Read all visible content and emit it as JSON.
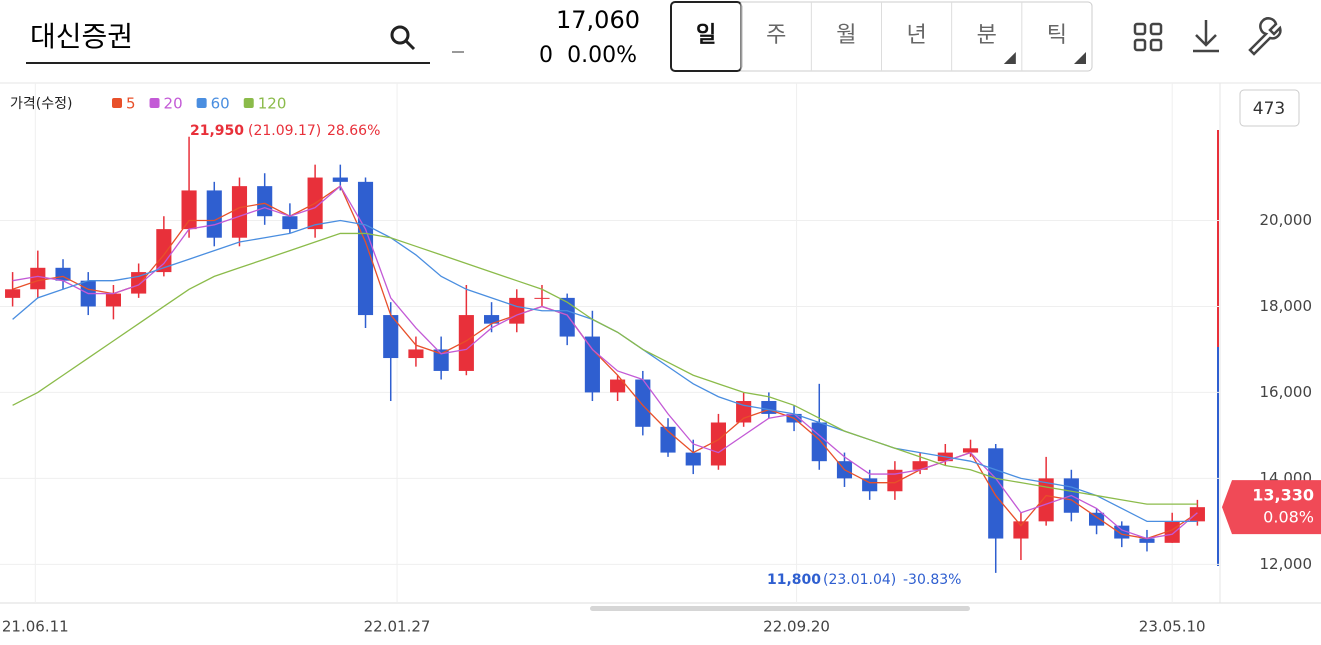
{
  "header": {
    "search": "대신증권",
    "price": "17,060",
    "change": "0",
    "change_pct": "0.00%",
    "tabs": [
      "일",
      "주",
      "월",
      "년",
      "분",
      "틱"
    ],
    "badge": "473"
  },
  "chart_data": {
    "type": "candlestick",
    "legend_title": "가격(수정)",
    "annotations": {
      "max_value": "21,950",
      "max_date": "(21.09.17)",
      "max_change": "28.66%",
      "min_value": "11,800",
      "min_date": "(23.01.04)",
      "min_change": "-30.83%"
    },
    "last_price": {
      "value": 13330,
      "label": "13,330",
      "change": "0.08%"
    },
    "xlim": [
      0,
      48
    ],
    "xticks": [
      {
        "value": 1.4,
        "label": "21.06.11"
      },
      {
        "value": 15.75,
        "label": "22.01.27"
      },
      {
        "value": 31.6,
        "label": "22.09.20"
      },
      {
        "value": 46.5,
        "label": "23.05.10"
      }
    ],
    "ylim": [
      11100,
      23200
    ],
    "yticks": [
      {
        "value": 12000,
        "label": "12,000"
      },
      {
        "value": 14000,
        "label": "14,000"
      },
      {
        "value": 16000,
        "label": "16,000"
      },
      {
        "value": 18000,
        "label": "18,000"
      },
      {
        "value": 20000,
        "label": "20,000"
      }
    ],
    "up_color": "#e8303a",
    "down_color": "#2f5fd0",
    "open": [
      18200,
      18400,
      18900,
      18600,
      18000,
      18300,
      18800,
      19800,
      20700,
      19600,
      20800,
      20100,
      19800,
      21000,
      20900,
      17800,
      16800,
      17000,
      16500,
      17800,
      17600,
      18200,
      18200,
      17300,
      16000,
      16300,
      15200,
      14600,
      14300,
      15300,
      15800,
      15500,
      15300,
      14400,
      14000,
      13700,
      14200,
      14400,
      14600,
      14700,
      12600,
      13000,
      14000,
      13200,
      12900,
      12600,
      12500,
      13000
    ],
    "high": [
      18800,
      19300,
      19100,
      18800,
      18500,
      19000,
      20100,
      21950,
      20900,
      21000,
      21100,
      20400,
      21300,
      21300,
      21000,
      18100,
      17300,
      17300,
      18500,
      18100,
      18400,
      18500,
      18300,
      17900,
      16400,
      16500,
      15400,
      14900,
      15500,
      16000,
      16000,
      15700,
      16200,
      14600,
      14200,
      14400,
      14600,
      14800,
      14900,
      14800,
      13200,
      14500,
      14200,
      13300,
      13000,
      12800,
      13200,
      13500
    ],
    "low": [
      18000,
      18200,
      18400,
      17800,
      17700,
      18200,
      18700,
      19600,
      19400,
      19400,
      19900,
      19700,
      19600,
      20700,
      17500,
      15800,
      16600,
      16300,
      16400,
      17400,
      17400,
      18000,
      17100,
      15800,
      15800,
      15000,
      14500,
      14100,
      14200,
      15200,
      15400,
      15100,
      14200,
      13800,
      13500,
      13500,
      14100,
      14300,
      14500,
      11800,
      12100,
      12900,
      13000,
      12700,
      12400,
      12300,
      12500,
      12900
    ],
    "close": [
      18400,
      18900,
      18600,
      18000,
      18300,
      18800,
      19800,
      20700,
      19600,
      20800,
      20100,
      19800,
      21000,
      20900,
      17800,
      16800,
      17000,
      16500,
      17800,
      17600,
      18200,
      18200,
      17300,
      16000,
      16300,
      15200,
      14600,
      14300,
      15300,
      15800,
      15500,
      15300,
      14400,
      14000,
      13700,
      14200,
      14400,
      14600,
      14700,
      12600,
      13000,
      14000,
      13200,
      12900,
      12600,
      12500,
      13000,
      13330
    ],
    "series": [
      {
        "name": "5",
        "color": "#e8502a",
        "values": [
          18400,
          18600,
          18700,
          18400,
          18300,
          18500,
          19200,
          20000,
          20000,
          20300,
          20400,
          20100,
          20400,
          20800,
          19500,
          17800,
          17100,
          16900,
          17200,
          17600,
          17800,
          18000,
          17800,
          17000,
          16400,
          15700,
          15100,
          14600,
          14900,
          15400,
          15600,
          15400,
          14900,
          14200,
          13900,
          13900,
          14200,
          14400,
          14600,
          13600,
          12900,
          13600,
          13500,
          13100,
          12700,
          12600,
          12800,
          13200
        ]
      },
      {
        "name": "20",
        "color": "#c35ad6",
        "values": [
          18600,
          18700,
          18600,
          18300,
          18300,
          18500,
          19000,
          19800,
          19900,
          20100,
          20300,
          20100,
          20300,
          20800,
          19800,
          18200,
          17500,
          16900,
          17000,
          17500,
          17800,
          18000,
          17800,
          17000,
          16500,
          16300,
          15500,
          14800,
          14600,
          15000,
          15400,
          15500,
          15000,
          14500,
          14100,
          14100,
          14200,
          14400,
          14600,
          14000,
          13200,
          13400,
          13600,
          13300,
          12800,
          12600,
          12700,
          13200
        ]
      },
      {
        "name": "60",
        "color": "#4a8ee0",
        "values": [
          17700,
          18200,
          18400,
          18600,
          18600,
          18700,
          18900,
          19100,
          19300,
          19500,
          19600,
          19700,
          19900,
          20000,
          19900,
          19600,
          19200,
          18700,
          18400,
          18200,
          18000,
          17900,
          17900,
          17700,
          17400,
          17000,
          16600,
          16200,
          15900,
          15700,
          15600,
          15500,
          15300,
          15100,
          14900,
          14700,
          14600,
          14500,
          14400,
          14200,
          14000,
          13900,
          13800,
          13600,
          13300,
          13000,
          13000,
          13000
        ]
      },
      {
        "name": "120",
        "color": "#8bbb4a",
        "values": [
          15700,
          16000,
          16400,
          16800,
          17200,
          17600,
          18000,
          18400,
          18700,
          18900,
          19100,
          19300,
          19500,
          19700,
          19700,
          19600,
          19400,
          19200,
          19000,
          18800,
          18600,
          18400,
          18100,
          17700,
          17400,
          17000,
          16700,
          16400,
          16200,
          16000,
          15900,
          15700,
          15400,
          15100,
          14900,
          14700,
          14500,
          14300,
          14200,
          14000,
          13900,
          13800,
          13700,
          13600,
          13500,
          13400,
          13400,
          13400
        ]
      }
    ]
  }
}
